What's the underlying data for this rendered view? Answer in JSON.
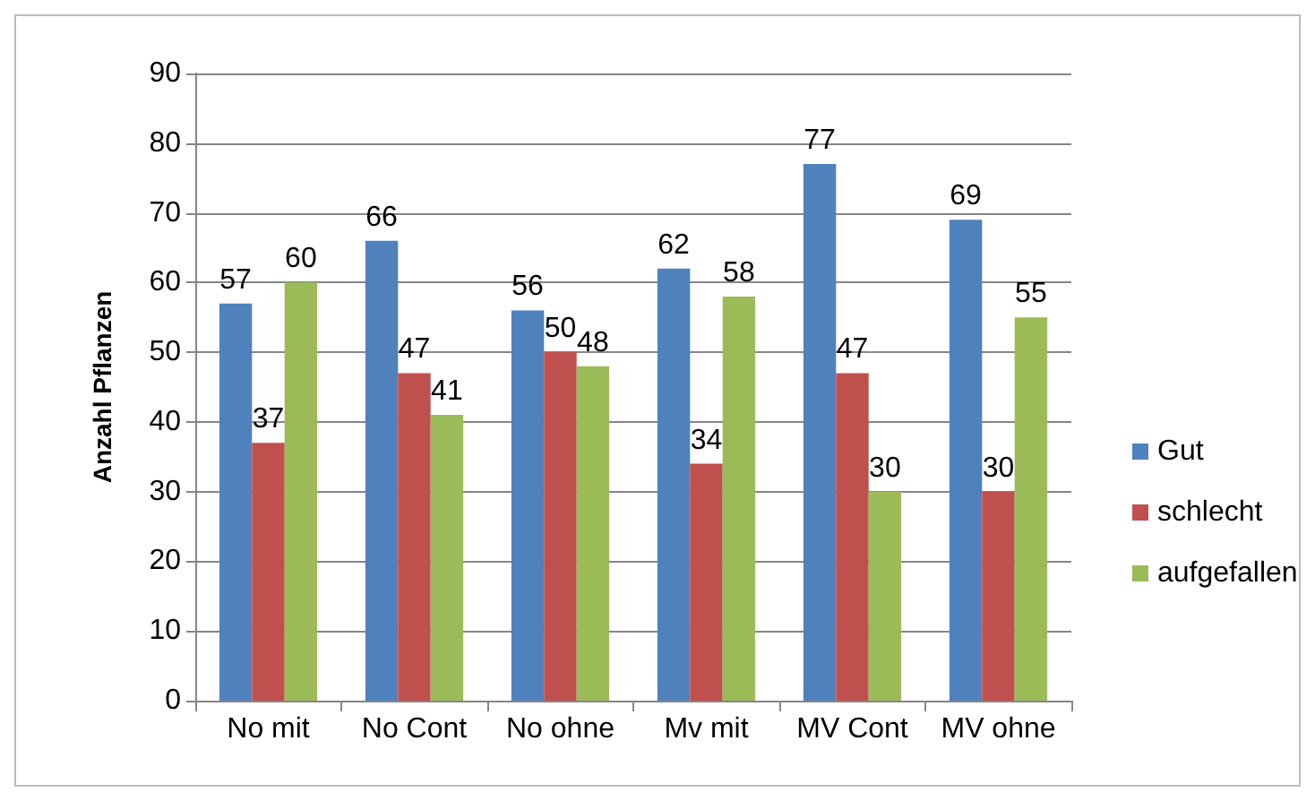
{
  "chart_data": {
    "type": "bar",
    "ylabel": "Anzahl Pflanzen",
    "categories": [
      "No mit",
      "No Cont",
      "No ohne",
      "Mv mit",
      "MV Cont",
      "MV ohne"
    ],
    "series": [
      {
        "name": "Gut",
        "color": "#4f81bd",
        "values": [
          57,
          66,
          56,
          62,
          77,
          69
        ]
      },
      {
        "name": "schlecht",
        "color": "#c0504d",
        "values": [
          37,
          47,
          50,
          34,
          47,
          30
        ]
      },
      {
        "name": "aufgefallen",
        "color": "#9bbb59",
        "values": [
          60,
          41,
          48,
          58,
          30,
          55
        ]
      }
    ],
    "ylim": [
      0,
      90
    ],
    "yticks": [
      0,
      10,
      20,
      30,
      40,
      50,
      60,
      70,
      80,
      90
    ],
    "grid": "y",
    "legend": "right",
    "data_labels": true
  }
}
